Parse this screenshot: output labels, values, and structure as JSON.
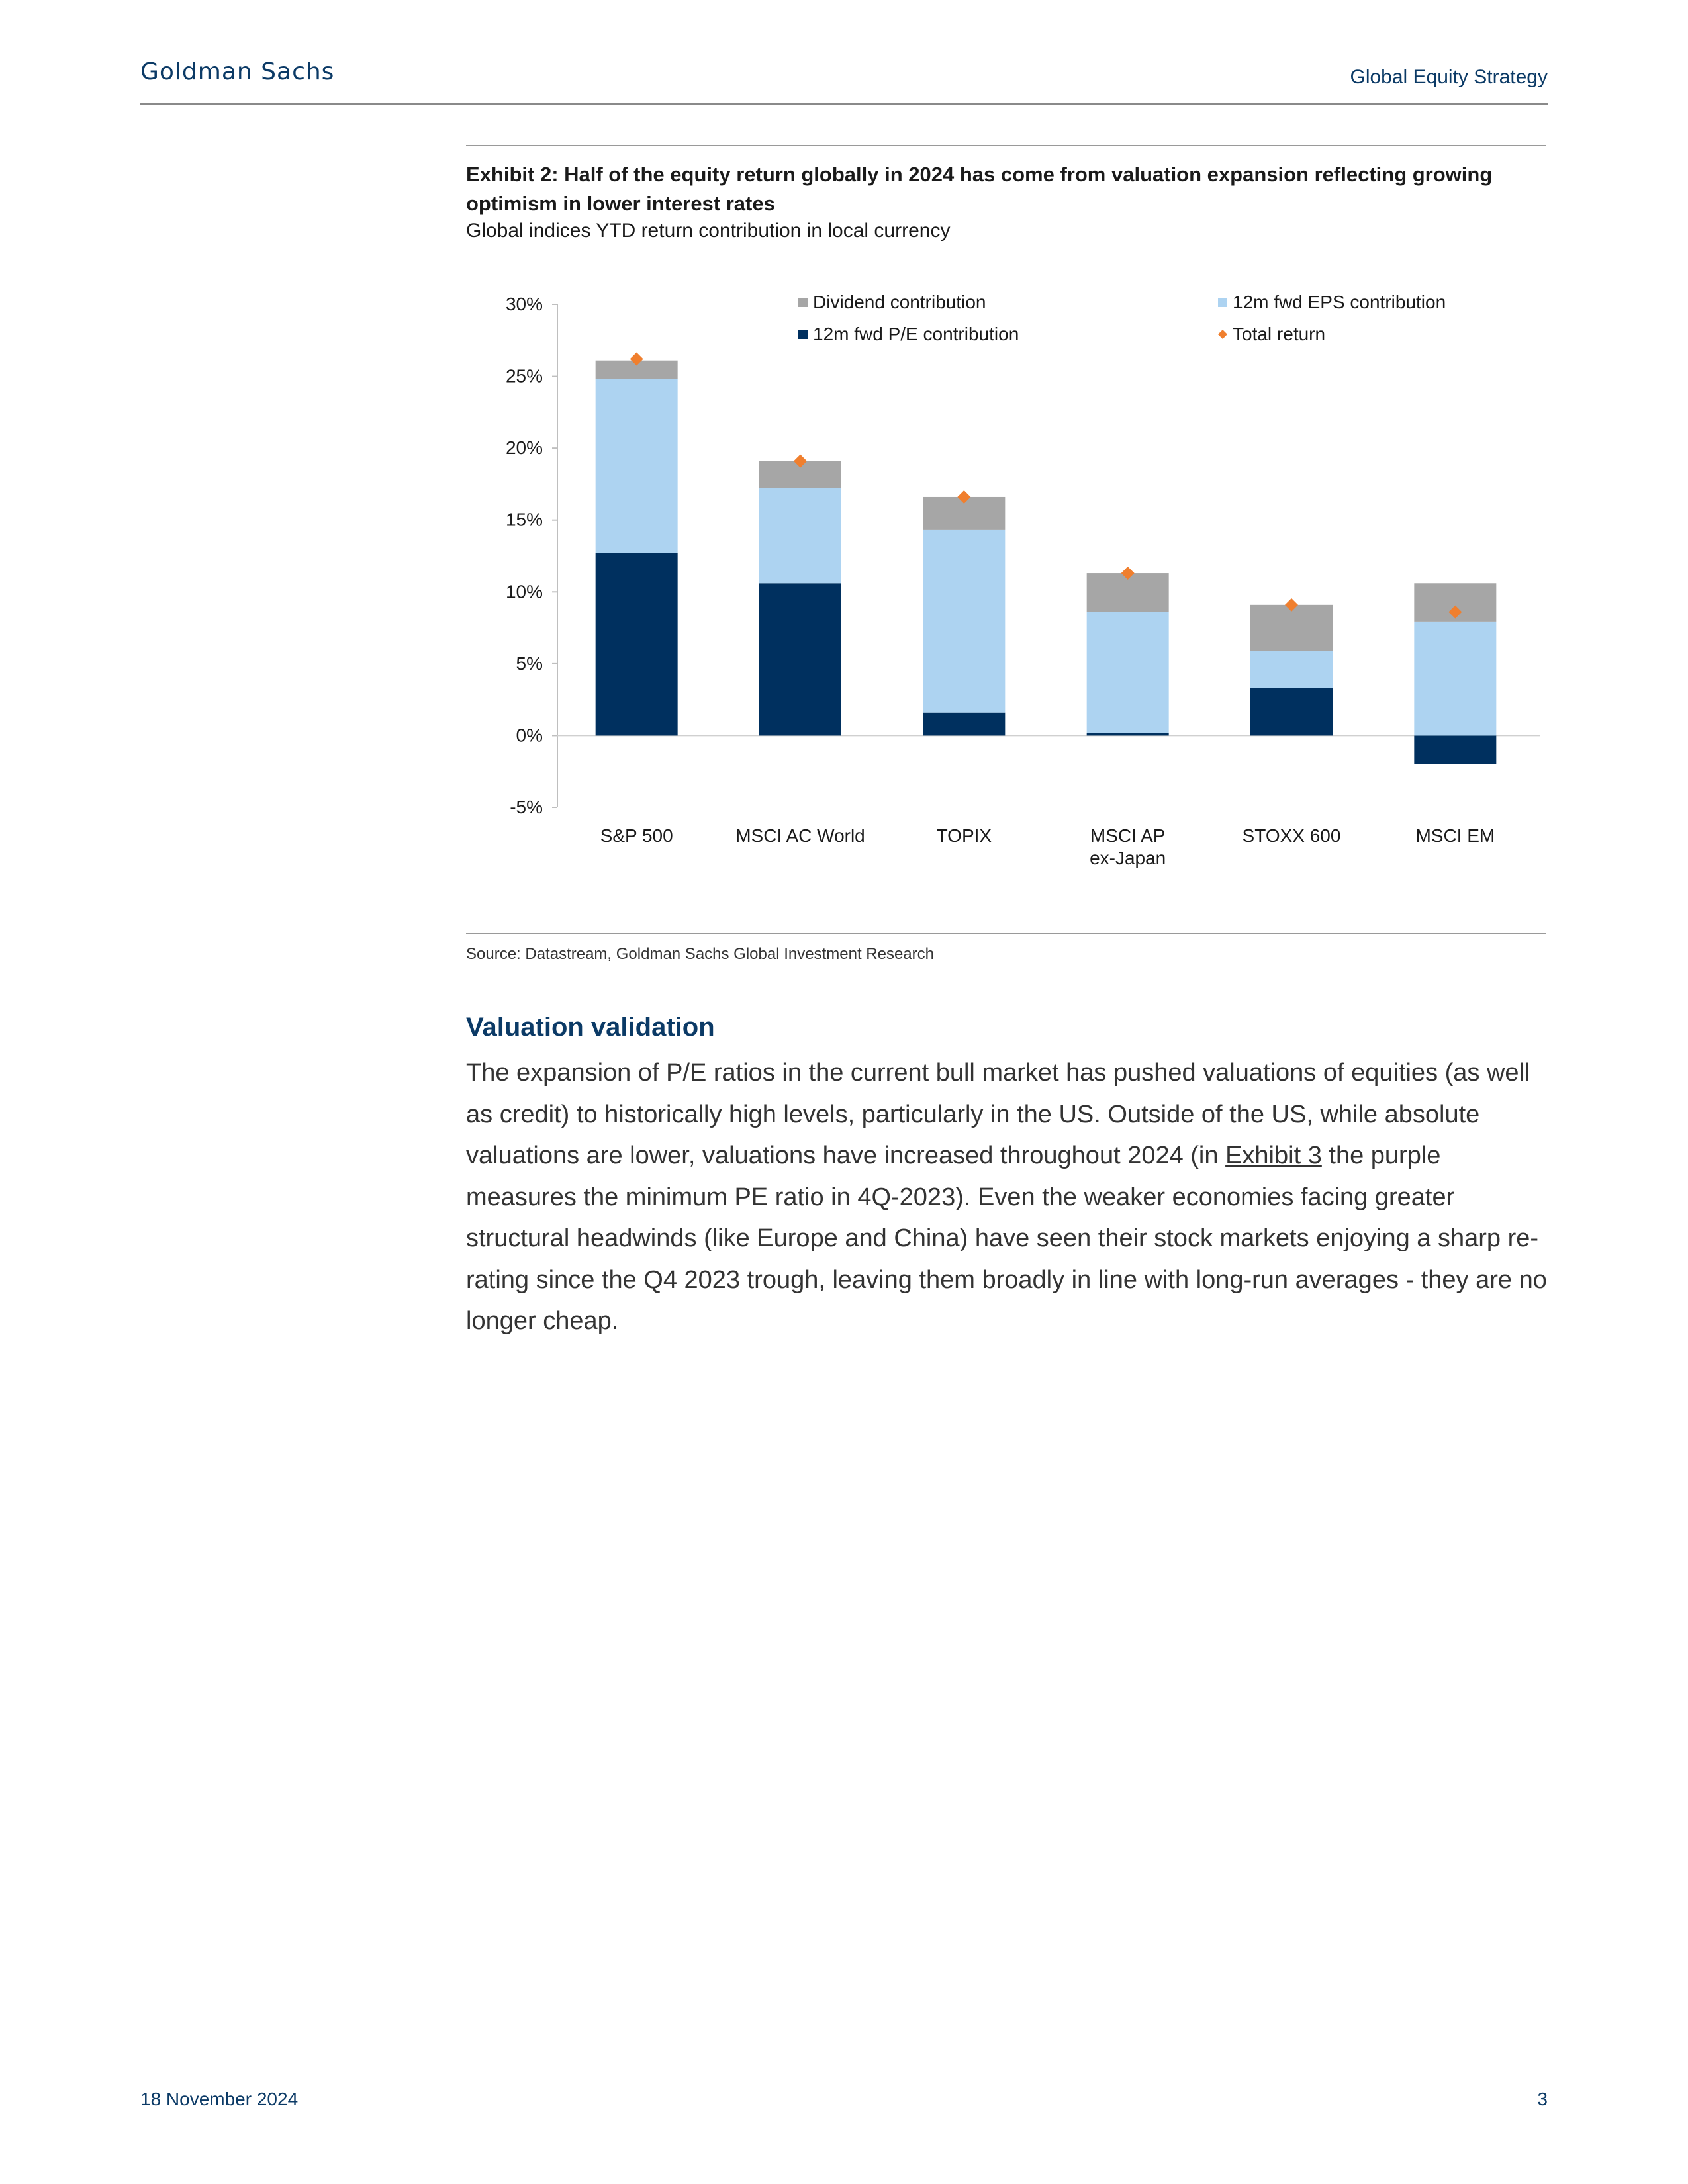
{
  "header": {
    "brand": "Goldman Sachs",
    "section": "Global Equity Strategy"
  },
  "exhibit": {
    "title": "Exhibit 2: Half of the equity return globally in 2024 has come from valuation expansion reflecting growing optimism in lower interest rates",
    "subtitle": "Global indices YTD return contribution in local currency",
    "source": "Source: Datastream, Goldman Sachs Global Investment Research"
  },
  "chart_data": {
    "type": "bar",
    "stacked": true,
    "categories": [
      "S&P 500",
      "MSCI AC World",
      "TOPIX",
      "MSCI AP ex-Japan",
      "STOXX 600",
      "MSCI EM"
    ],
    "category_lines": [
      [
        "S&P 500"
      ],
      [
        "MSCI AC World"
      ],
      [
        "TOPIX"
      ],
      [
        "MSCI AP",
        "ex-Japan"
      ],
      [
        "STOXX 600"
      ],
      [
        "MSCI EM"
      ]
    ],
    "series": [
      {
        "name": "12m fwd P/E contribution",
        "color": "#00305f",
        "values": [
          12.7,
          10.6,
          1.6,
          0.2,
          3.3,
          -2.0
        ]
      },
      {
        "name": "12m fwd EPS contribution",
        "color": "#add3f1",
        "values": [
          12.1,
          6.6,
          12.7,
          8.4,
          2.6,
          7.9
        ]
      },
      {
        "name": "Dividend contribution",
        "color": "#a6a6a6",
        "values": [
          1.3,
          1.9,
          2.3,
          2.7,
          3.2,
          2.7
        ]
      }
    ],
    "markers": {
      "name": "Total return",
      "color": "#f07f2e",
      "values": [
        26.2,
        19.1,
        16.6,
        11.3,
        9.1,
        8.6
      ]
    },
    "legend": [
      "Dividend contribution",
      "12m fwd EPS contribution",
      "12m fwd P/E contribution",
      "Total return"
    ],
    "ylim": [
      -5,
      30
    ],
    "yticks": [
      -5,
      0,
      5,
      10,
      15,
      20,
      25,
      30
    ],
    "ytick_labels": [
      "-5%",
      "0%",
      "5%",
      "10%",
      "15%",
      "20%",
      "25%",
      "30%"
    ],
    "legend_position": "top-right",
    "grid": false
  },
  "section": {
    "heading": "Valuation validation",
    "body_pre": "The expansion of P/E ratios in the current bull market has pushed valuations of equities (as well as credit) to historically high levels, particularly in the US. Outside of the US, while absolute valuations are lower, valuations have increased throughout 2024 (in ",
    "link": "Exhibit 3",
    "body_post": " the purple measures the minimum PE ratio in 4Q-2023). Even the weaker economies facing greater structural headwinds (like Europe and China) have seen their stock markets enjoying a sharp re-rating since the Q4 2023 trough, leaving them broadly in line with long-run averages - they are no longer cheap."
  },
  "footer": {
    "date": "18 November 2024",
    "page": "3"
  }
}
